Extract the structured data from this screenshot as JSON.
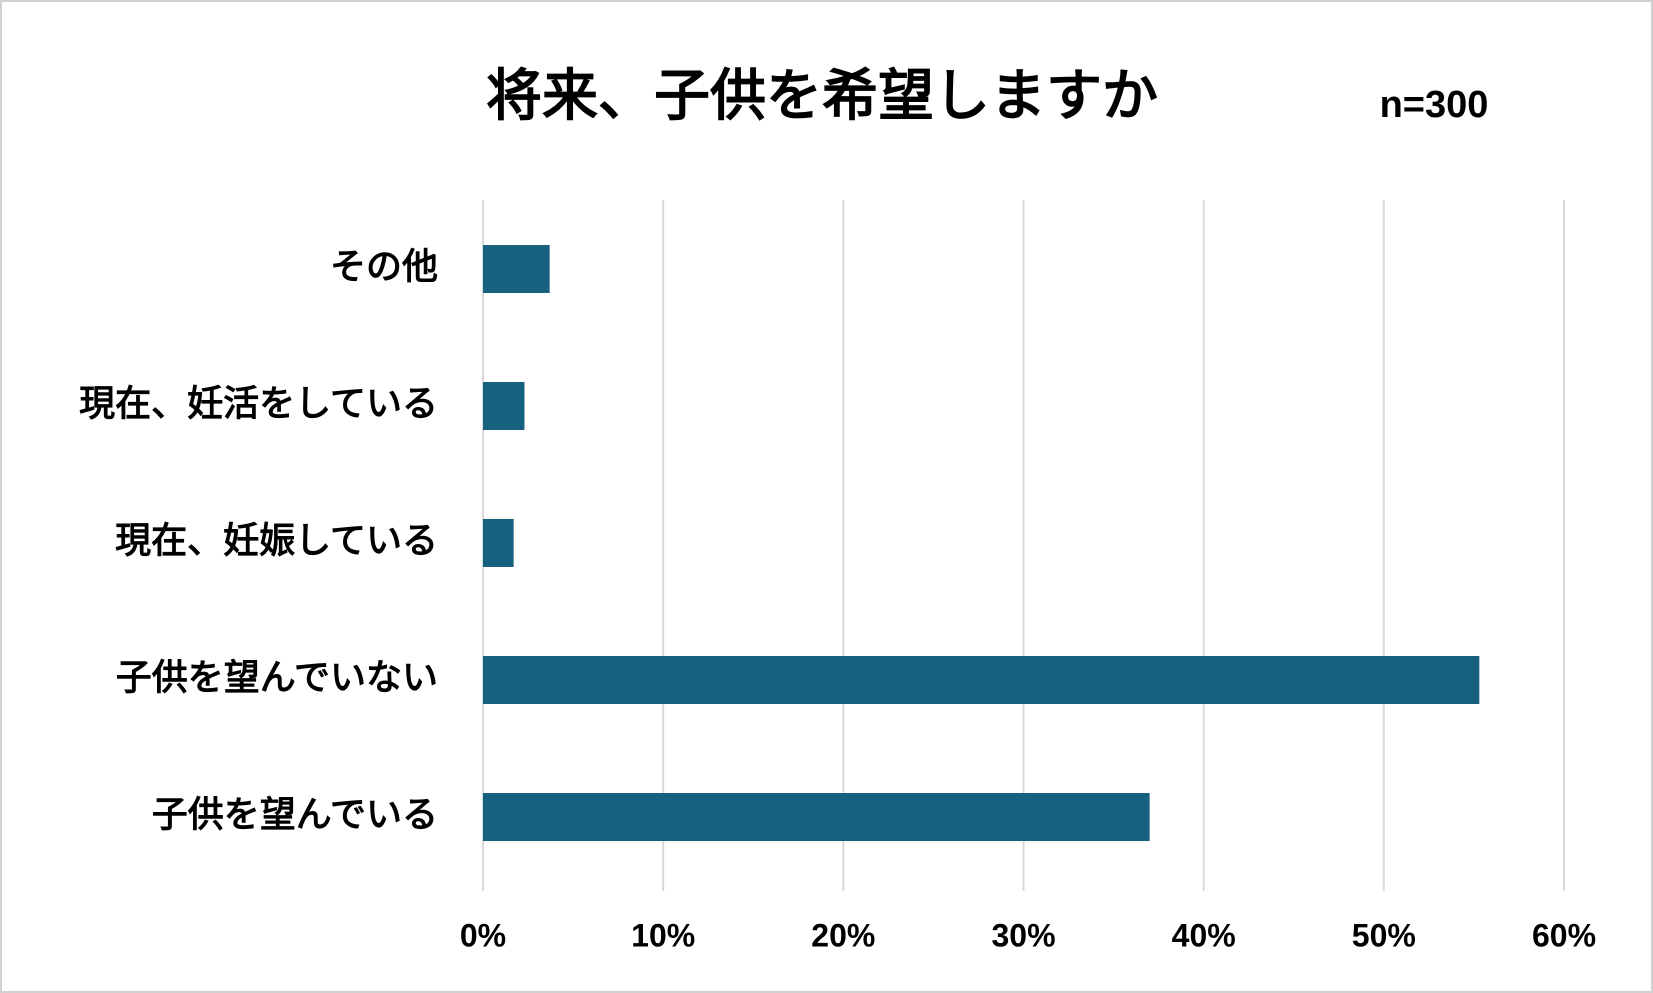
{
  "chart_data": {
    "type": "bar",
    "orientation": "horizontal",
    "title": "将来、子供を希望しますか",
    "annotation": "n=300",
    "categories": [
      "その他",
      "現在、妊活をしている",
      "現在、妊娠している",
      "子供を望んでいない",
      "子供を望んでいる"
    ],
    "values": [
      3.7,
      2.3,
      1.7,
      55.3,
      37.0
    ],
    "color": "#17607f",
    "xlim": [
      0,
      60
    ],
    "xticks": [
      {
        "value": 0,
        "label": "0%"
      },
      {
        "value": 10,
        "label": "10%"
      },
      {
        "value": 20,
        "label": "20%"
      },
      {
        "value": 30,
        "label": "30%"
      },
      {
        "value": 40,
        "label": "40%"
      },
      {
        "value": 50,
        "label": "50%"
      },
      {
        "value": 60,
        "label": "60%"
      }
    ],
    "grid": true
  }
}
